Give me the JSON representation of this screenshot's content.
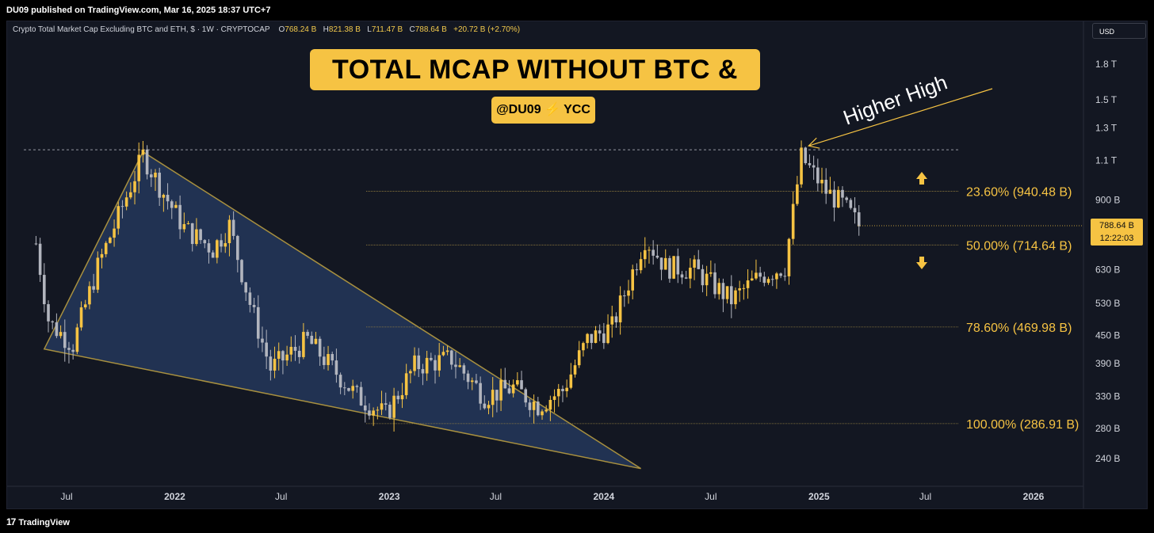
{
  "header": {
    "publisher": "DU09 published on TradingView.com, Mar 16, 2025 18:37 UTC+7"
  },
  "legend": {
    "symbol": "Crypto Total Market Cap Excluding BTC and ETH, $ · 1W · CRYPTOCAP",
    "o_label": "O",
    "o_value": "768.24 B",
    "h_label": "H",
    "h_value": "821.38 B",
    "l_label": "L",
    "l_value": "711.47 B",
    "c_label": "C",
    "c_value": "788.64 B",
    "change": "+20.72 B (+2.70%)"
  },
  "title": "TOTAL MCAP WITHOUT BTC & ETH",
  "handle": {
    "name": "@DU09",
    "bolt": "⚡",
    "brand": "YCC"
  },
  "currency_button": "USD",
  "last_price": {
    "value": "788.64 B",
    "countdown": "12:22:03"
  },
  "annotation": "Higher High",
  "footer": {
    "logo": "TradingView",
    "logo_mark": "17"
  },
  "colors": {
    "background": "#131722",
    "accent": "#f6c343",
    "up_candle": "#f6c343",
    "down_candle": "#b2b5be",
    "wedge_fill": "#25375a",
    "wedge_stroke": "#a8903f",
    "text": "#d1d4dc",
    "fib_text": "#f6c343"
  },
  "chart_data": {
    "type": "candlestick",
    "x_axis": {
      "labels": [
        "Jul",
        "2022",
        "Jul",
        "2023",
        "Jul",
        "2024",
        "Jul",
        "2025",
        "Jul",
        "2026"
      ],
      "dates": [
        "2021-07-01",
        "2022-01-01",
        "2022-07-01",
        "2023-01-01",
        "2023-07-01",
        "2024-01-01",
        "2024-07-01",
        "2025-01-01",
        "2025-07-01",
        "2026-01-01"
      ]
    },
    "y_axis": {
      "scale": "log",
      "labels": [
        "1.8 T",
        "1.5 T",
        "1.3 T",
        "1.1 T",
        "900 B",
        "630 B",
        "530 B",
        "450 B",
        "390 B",
        "330 B",
        "280 B",
        "240 B"
      ],
      "values": [
        1800,
        1500,
        1300,
        1100,
        900,
        630,
        530,
        450,
        390,
        330,
        280,
        240
      ],
      "unit": "B"
    },
    "fib_levels": [
      {
        "label": "23.60% (940.48 B)",
        "value": 940.48
      },
      {
        "label": "50.00% (714.64 B)",
        "value": 714.64
      },
      {
        "label": "78.60% (469.98 B)",
        "value": 469.98
      },
      {
        "label": "100.00% (286.91 B)",
        "value": 286.91
      }
    ],
    "ath_line_value": 1162,
    "close_trajectory": [
      {
        "date": "2021-05-10",
        "value": 720
      },
      {
        "date": "2021-06-01",
        "value": 480
      },
      {
        "date": "2021-07-12",
        "value": 430
      },
      {
        "date": "2021-08-23",
        "value": 640
      },
      {
        "date": "2021-10-04",
        "value": 870
      },
      {
        "date": "2021-11-08",
        "value": 1130
      },
      {
        "date": "2021-12-13",
        "value": 930
      },
      {
        "date": "2022-01-17",
        "value": 780
      },
      {
        "date": "2022-03-07",
        "value": 700
      },
      {
        "date": "2022-04-04",
        "value": 790
      },
      {
        "date": "2022-05-09",
        "value": 530
      },
      {
        "date": "2022-06-13",
        "value": 380
      },
      {
        "date": "2022-08-15",
        "value": 440
      },
      {
        "date": "2022-11-07",
        "value": 330
      },
      {
        "date": "2022-12-26",
        "value": 300
      },
      {
        "date": "2023-02-13",
        "value": 385
      },
      {
        "date": "2023-04-17",
        "value": 400
      },
      {
        "date": "2023-06-12",
        "value": 330
      },
      {
        "date": "2023-07-31",
        "value": 345
      },
      {
        "date": "2023-09-11",
        "value": 315
      },
      {
        "date": "2023-10-23",
        "value": 340
      },
      {
        "date": "2023-12-04",
        "value": 440
      },
      {
        "date": "2024-01-15",
        "value": 470
      },
      {
        "date": "2024-03-11",
        "value": 740
      },
      {
        "date": "2024-04-15",
        "value": 640
      },
      {
        "date": "2024-06-03",
        "value": 630
      },
      {
        "date": "2024-08-05",
        "value": 540
      },
      {
        "date": "2024-09-23",
        "value": 610
      },
      {
        "date": "2024-11-04",
        "value": 640
      },
      {
        "date": "2024-12-02",
        "value": 1120
      },
      {
        "date": "2025-01-13",
        "value": 940
      },
      {
        "date": "2025-02-10",
        "value": 880
      },
      {
        "date": "2025-03-10",
        "value": 789
      }
    ],
    "wedge": [
      {
        "date": "2021-05-24",
        "value": 420
      },
      {
        "date": "2021-11-08",
        "value": 1150
      },
      {
        "date": "2024-03-04",
        "value": 228
      }
    ]
  }
}
